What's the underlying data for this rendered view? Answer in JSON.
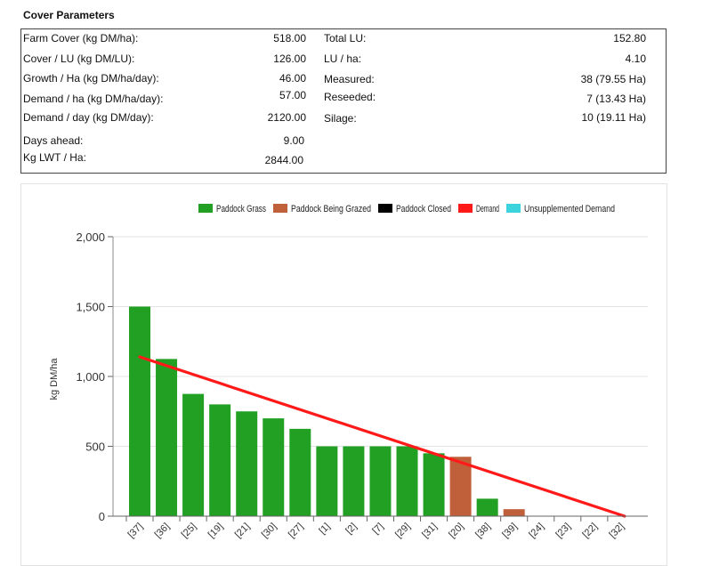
{
  "section_title": "Cover Parameters",
  "params": {
    "left": [
      {
        "label": "Farm Cover (kg DM/ha):",
        "value": "518.00"
      },
      {
        "label": "Cover / LU (kg DM/LU):",
        "value": "126.00"
      },
      {
        "label": "Growth / Ha (kg DM/ha/day):",
        "value": "46.00"
      },
      {
        "label": "Demand / ha (kg DM/ha/day):",
        "value": "57.00"
      },
      {
        "label": "Demand / day (kg DM/day):",
        "value": "2120.00"
      },
      {
        "label": "Days ahead:",
        "value": "9.00"
      },
      {
        "label": "Kg LWT / Ha:",
        "value": "2844.00"
      }
    ],
    "right": [
      {
        "label": "Total LU:",
        "value": "152.80"
      },
      {
        "label": "LU / ha:",
        "value": "4.10"
      },
      {
        "label": "Measured:",
        "value": "38 (79.55 Ha)"
      },
      {
        "label": "Reseeded:",
        "value": "7 (13.43 Ha)"
      },
      {
        "label": "Silage:",
        "value": "10 (19.11 Ha)"
      }
    ]
  },
  "chart_data": {
    "type": "bar",
    "ylabel": "kg DM/ha",
    "xlabel": "",
    "ylim": [
      0,
      2000
    ],
    "yticks": [
      "0",
      "500",
      "1,000",
      "1,500",
      "2,000"
    ],
    "ytick_values": [
      0,
      500,
      1000,
      1500,
      2000
    ],
    "grid": true,
    "legend_position": "top-right",
    "legend": [
      {
        "name": "Paddock Grass",
        "color": "#22a023"
      },
      {
        "name": "Paddock Being Grazed",
        "color": "#c0603a"
      },
      {
        "name": "Paddock Closed",
        "color": "#000000"
      },
      {
        "name": "Demand",
        "color": "#ff1a1a"
      },
      {
        "name": "Unsupplemented Demand",
        "color": "#3dd3dc"
      }
    ],
    "categories": [
      "[37]",
      "[36]",
      "[25]",
      "[19]",
      "[21]",
      "[30]",
      "[27]",
      "[1]",
      "[2]",
      "[7]",
      "[29]",
      "[31]",
      "[20]",
      "[38]",
      "[39]",
      "[24]",
      "[23]",
      "[22]",
      "[32]"
    ],
    "values": [
      1500,
      1125,
      875,
      800,
      750,
      700,
      625,
      500,
      500,
      500,
      500,
      450,
      425,
      125,
      50,
      0,
      0,
      0,
      0
    ],
    "bar_status": [
      "grass",
      "grass",
      "grass",
      "grass",
      "grass",
      "grass",
      "grass",
      "grass",
      "grass",
      "grass",
      "grass",
      "grass",
      "grazed",
      "grass",
      "grazed",
      "grass",
      "grass",
      "grass",
      "grass"
    ],
    "status_colors": {
      "grass": "#22a023",
      "grazed": "#c0603a",
      "closed": "#000000"
    },
    "demand_line": {
      "color": "#ff1a1a",
      "x_start": "[37]",
      "y_start": 1140,
      "x_end": "[32]",
      "y_end": 0
    }
  }
}
